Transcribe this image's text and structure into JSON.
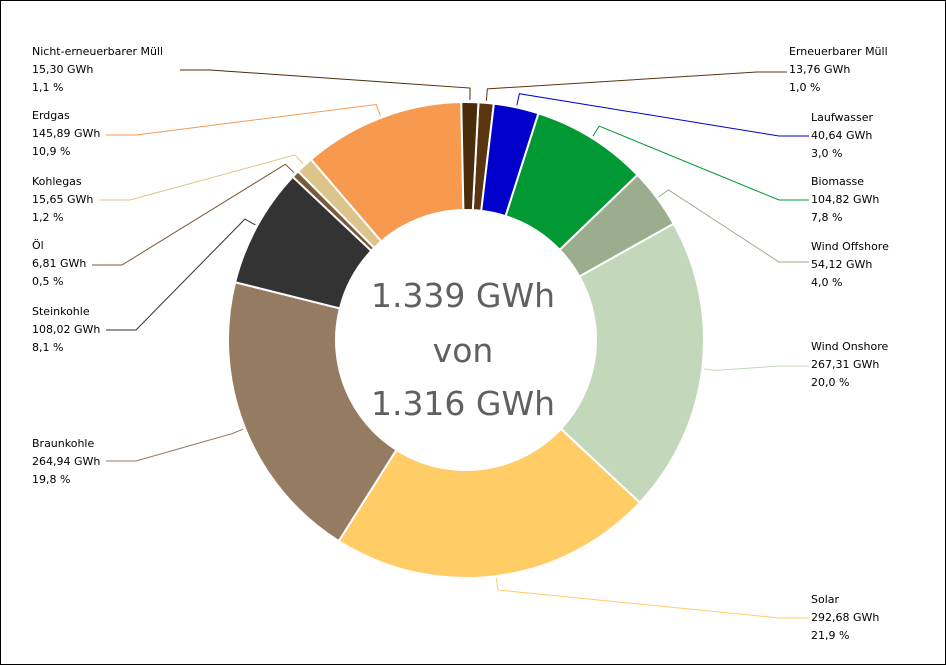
{
  "chart_data": {
    "type": "pie",
    "variant": "donut",
    "center_text": [
      "1.339 GWh",
      "von",
      "1.316 GWh"
    ],
    "slices": [
      {
        "name": "Erneuerbarer Müll",
        "value": 13.76,
        "value_text": "13,76 GWh",
        "percent_text": "1,0 %",
        "color": "#5a3510"
      },
      {
        "name": "Laufwasser",
        "value": 40.64,
        "value_text": "40,64 GWh",
        "percent_text": "3,0 %",
        "color": "#0000cc"
      },
      {
        "name": "Biomasse",
        "value": 104.82,
        "value_text": "104,82 GWh",
        "percent_text": "7,8 %",
        "color": "#009933"
      },
      {
        "name": "Wind Offshore",
        "value": 54.12,
        "value_text": "54,12 GWh",
        "percent_text": "4,0 %",
        "color": "#9aae8e"
      },
      {
        "name": "Wind Onshore",
        "value": 267.31,
        "value_text": "267,31 GWh",
        "percent_text": "20,0 %",
        "color": "#c3d8ba"
      },
      {
        "name": "Solar",
        "value": 292.68,
        "value_text": "292,68 GWh",
        "percent_text": "21,9 %",
        "color": "#ffcc66"
      },
      {
        "name": "Braunkohle",
        "value": 264.94,
        "value_text": "264,94 GWh",
        "percent_text": "19,8 %",
        "color": "#957b61"
      },
      {
        "name": "Steinkohle",
        "value": 108.02,
        "value_text": "108,02 GWh",
        "percent_text": "8,1 %",
        "color": "#333333"
      },
      {
        "name": "Öl",
        "value": 6.81,
        "value_text": "6,81 GWh",
        "percent_text": "0,5 %",
        "color": "#7a5a3a"
      },
      {
        "name": "Kohlegas",
        "value": 15.65,
        "value_text": "15,65 GWh",
        "percent_text": "1,2 %",
        "color": "#dcc48a"
      },
      {
        "name": "Erdgas",
        "value": 145.89,
        "value_text": "145,89 GWh",
        "percent_text": "10,9 %",
        "color": "#f79a4f"
      },
      {
        "name": "Nicht-erneuerbarer Müll",
        "value": 15.3,
        "value_text": "15,30 GWh",
        "percent_text": "1,1 %",
        "color": "#4a2c0a"
      }
    ]
  }
}
